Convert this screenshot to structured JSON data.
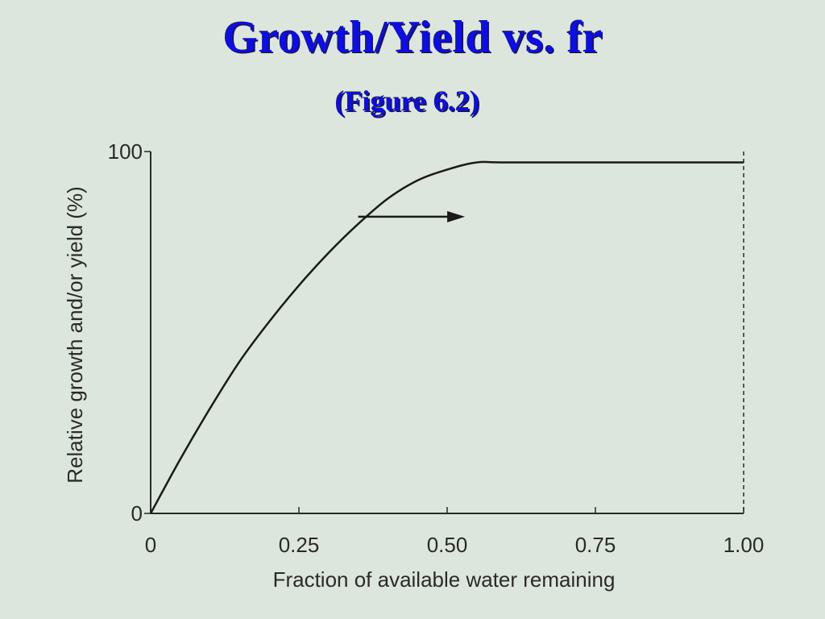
{
  "slide": {
    "title": "Growth/Yield vs. fr",
    "subtitle": "(Figure 6.2)"
  },
  "chart_data": {
    "type": "line",
    "xlabel": "Fraction of available water remaining",
    "ylabel": "Relative growth and/or yield (%)",
    "xlim": [
      0,
      1.0
    ],
    "ylim": [
      0,
      100
    ],
    "x_ticks": [
      "0",
      "0.25",
      "0.50",
      "0.75",
      "1.00"
    ],
    "x_tick_values": [
      0,
      0.25,
      0.5,
      0.75,
      1.0
    ],
    "y_ticks": [
      "0",
      "100"
    ],
    "y_tick_values": [
      0,
      100
    ],
    "series": [
      {
        "x": [
          0,
          0.05,
          0.1,
          0.15,
          0.2,
          0.25,
          0.3,
          0.35,
          0.4,
          0.45,
          0.5,
          0.55,
          0.6,
          0.8,
          1.0
        ],
        "y": [
          0,
          15,
          29,
          42,
          53,
          63,
          72,
          80,
          87,
          92,
          95,
          97,
          97,
          97,
          97
        ]
      }
    ],
    "vertical_reference": {
      "x": 1.0,
      "style": "dashed"
    },
    "arrow": {
      "x_start": 0.35,
      "x_end": 0.53,
      "y": 82
    },
    "grid": false,
    "colors": {
      "line": "#1a1a1a",
      "axes": "#2a2a2a"
    }
  }
}
